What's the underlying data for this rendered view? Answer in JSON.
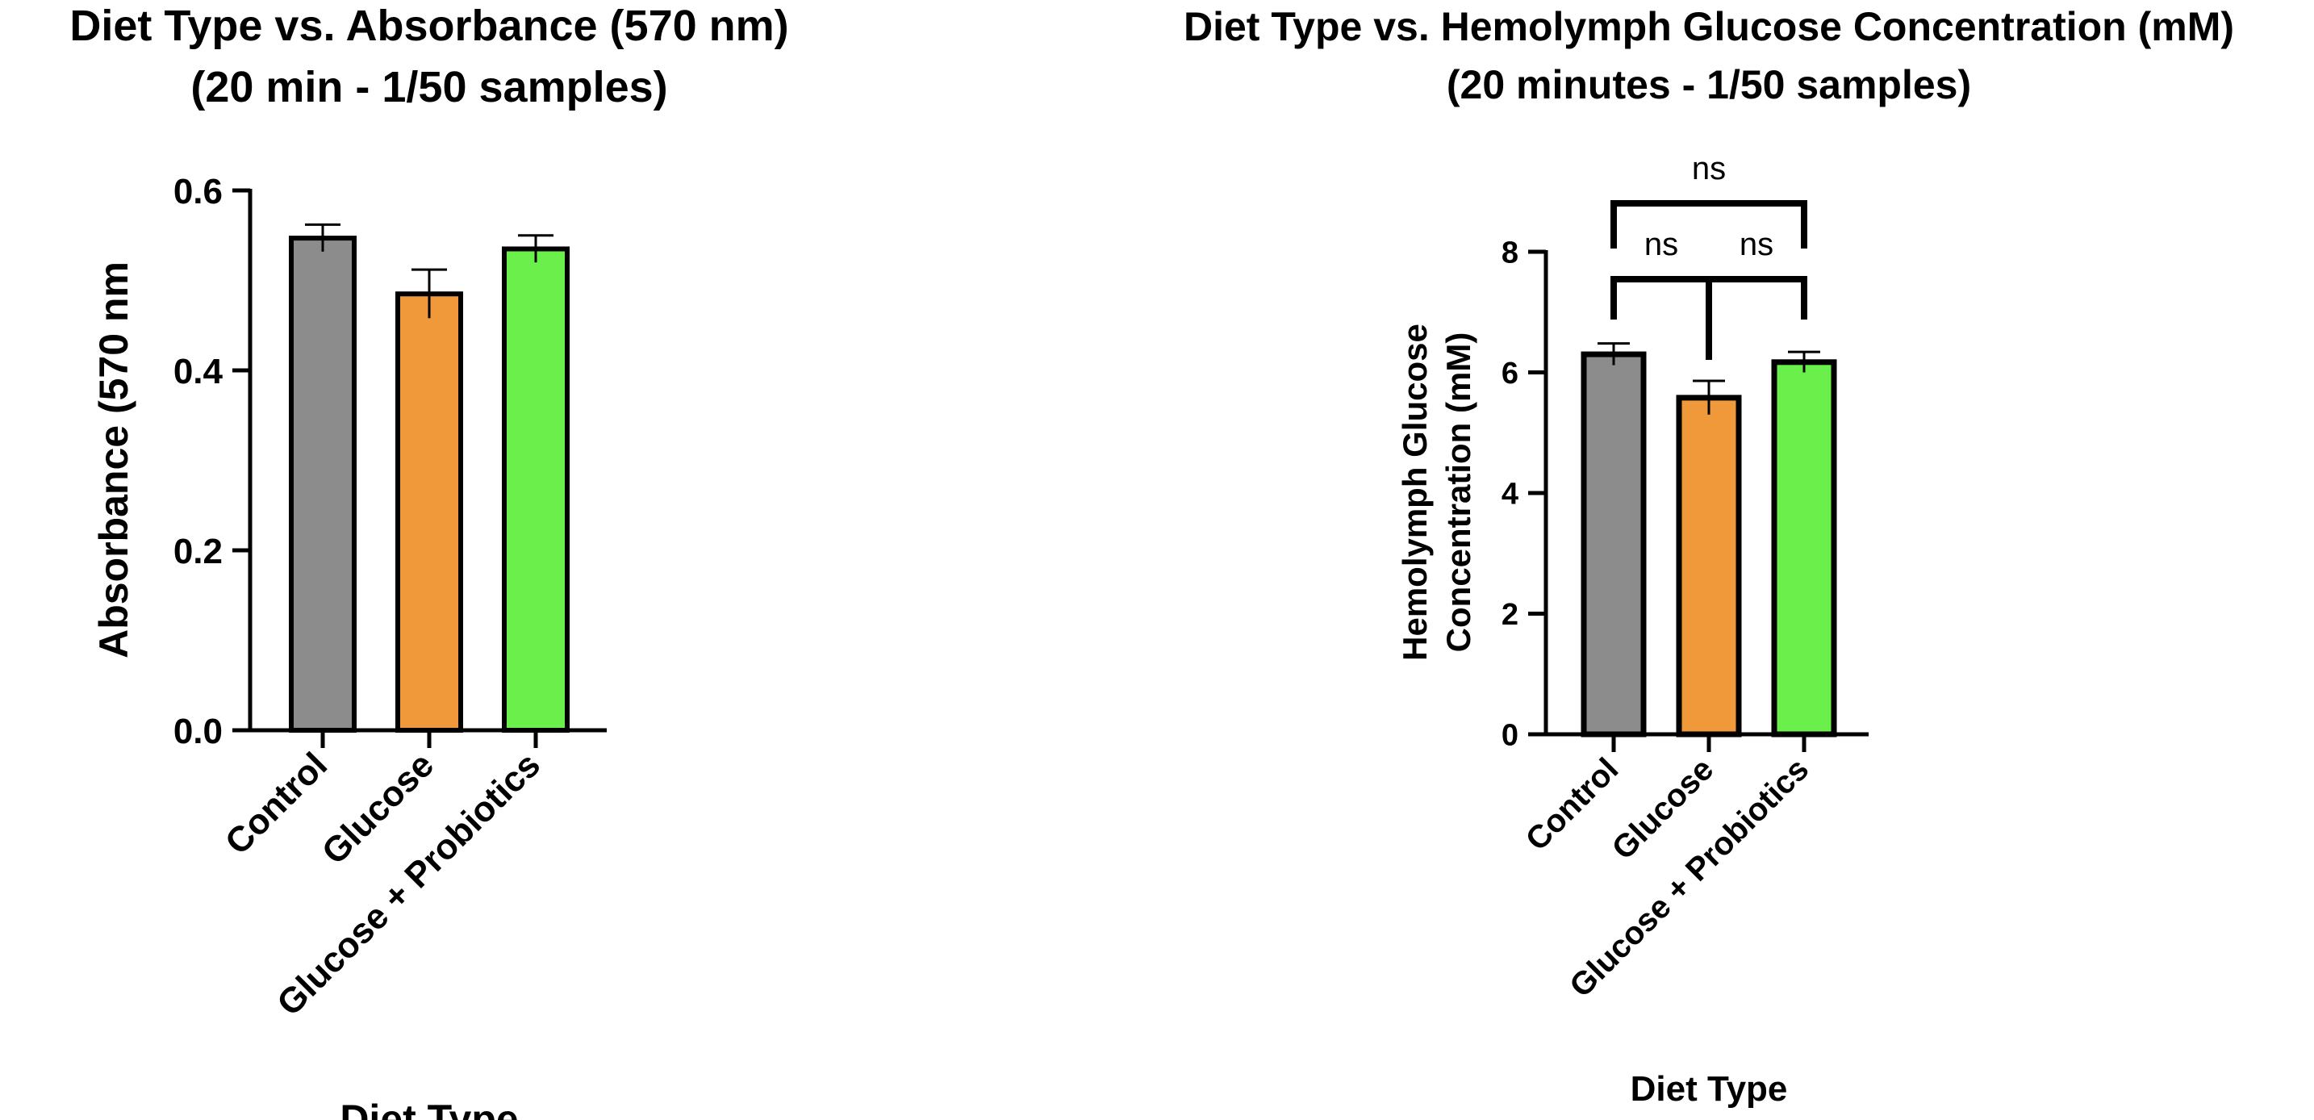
{
  "chart_data": [
    {
      "type": "bar",
      "title_line1": "Diet Type vs. Absorbance (570 nm)",
      "title_line2": "(20 min - 1/50 samples)",
      "categories": [
        "Control",
        "Glucose",
        "Glucose + Probiotics"
      ],
      "values": [
        0.547,
        0.485,
        0.535
      ],
      "errors": [
        0.015,
        0.027,
        0.015
      ],
      "colors": [
        "#8c8c8c",
        "#f0993a",
        "#6bef4a"
      ],
      "xlabel": "Diet Type",
      "ylabel": "Absorbance (570 nm",
      "ylim": [
        0,
        0.6
      ],
      "yticks": [
        0.0,
        0.2,
        0.4,
        0.6
      ],
      "ytick_labels": [
        "0.0",
        "0.2",
        "0.4",
        "0.6"
      ]
    },
    {
      "type": "bar",
      "title_line1": "Diet Type vs. Hemolymph Glucose Concentration (mM)",
      "title_line2": "(20 minutes - 1/50 samples)",
      "categories": [
        "Control",
        "Glucose",
        "Glucose + Probiotics"
      ],
      "values": [
        6.3,
        5.58,
        6.17
      ],
      "errors": [
        0.18,
        0.28,
        0.17
      ],
      "colors": [
        "#8c8c8c",
        "#f0993a",
        "#6bef4a"
      ],
      "xlabel": "Diet Type",
      "ylabel_line1": "Hemolymph Glucose",
      "ylabel_line2": "Concentration (mM)",
      "ylim": [
        0,
        8
      ],
      "yticks": [
        0,
        2,
        4,
        6,
        8
      ],
      "ytick_labels": [
        "0",
        "2",
        "4",
        "6",
        "8"
      ],
      "annotations": [
        "ns",
        "ns",
        "ns"
      ]
    }
  ]
}
